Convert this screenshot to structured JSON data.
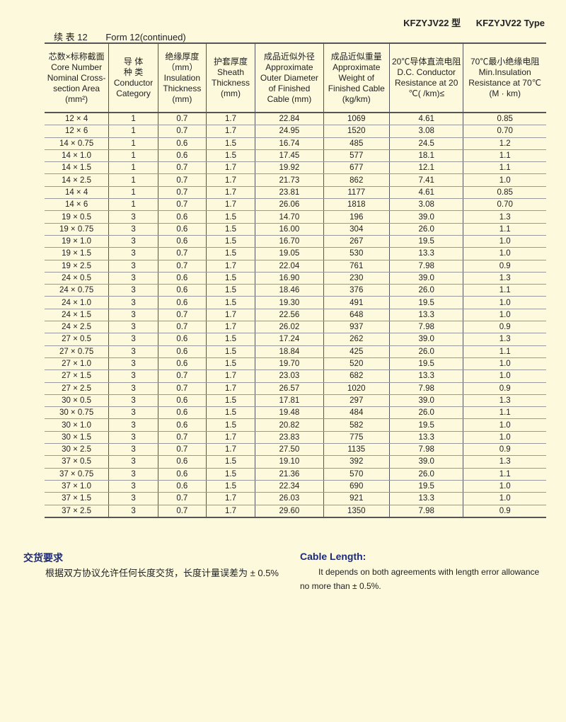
{
  "title": {
    "cn": "KFZYJV22 型",
    "en": "KFZYJV22 Type"
  },
  "caption": {
    "cn": "续 表 12",
    "en": "Form 12(continued)"
  },
  "table": {
    "headers": [
      "芯数×标称截面\nCore Number\nNominal Cross-\nsection Area\n(mm²)",
      "导 体\n种 类\nConductor\nCategory",
      "绝缘厚度\n（mm）\nInsulation\nThickness\n(mm)",
      "护套厚度\nSheath\nThickness\n(mm)",
      "成品近似外径\nApproximate\nOuter Diameter\nof Finished\nCable (mm)",
      "成品近似重量\nApproximate\nWeight of\nFinished Cable\n(kg/km)",
      "20℃导体直流电阻\nD.C. Conductor\nResistance at 20\n℃(  /km)≤",
      "70℃最小绝缘电阻\nMin.Insulation\nResistance at 70℃\n(M   · km)"
    ],
    "rows": [
      [
        "12 × 4",
        "1",
        "0.7",
        "1.7",
        "22.84",
        "1069",
        "4.61",
        "0.85"
      ],
      [
        "12 × 6",
        "1",
        "0.7",
        "1.7",
        "24.95",
        "1520",
        "3.08",
        "0.70"
      ],
      [
        "14 × 0.75",
        "1",
        "0.6",
        "1.5",
        "16.74",
        "485",
        "24.5",
        "1.2"
      ],
      [
        "14 × 1.0",
        "1",
        "0.6",
        "1.5",
        "17.45",
        "577",
        "18.1",
        "1.1"
      ],
      [
        "14 × 1.5",
        "1",
        "0.7",
        "1.7",
        "19.92",
        "677",
        "12.1",
        "1.1"
      ],
      [
        "14 × 2.5",
        "1",
        "0.7",
        "1.7",
        "21.73",
        "862",
        "7.41",
        "1.0"
      ],
      [
        "14 × 4",
        "1",
        "0.7",
        "1.7",
        "23.81",
        "1177",
        "4.61",
        "0.85"
      ],
      [
        "14 × 6",
        "1",
        "0.7",
        "1.7",
        "26.06",
        "1818",
        "3.08",
        "0.70"
      ],
      [
        "19 × 0.5",
        "3",
        "0.6",
        "1.5",
        "14.70",
        "196",
        "39.0",
        "1.3"
      ],
      [
        "19 × 0.75",
        "3",
        "0.6",
        "1.5",
        "16.00",
        "304",
        "26.0",
        "1.1"
      ],
      [
        "19 × 1.0",
        "3",
        "0.6",
        "1.5",
        "16.70",
        "267",
        "19.5",
        "1.0"
      ],
      [
        "19 × 1.5",
        "3",
        "0.7",
        "1.5",
        "19.05",
        "530",
        "13.3",
        "1.0"
      ],
      [
        "19 × 2.5",
        "3",
        "0.7",
        "1.7",
        "22.04",
        "761",
        "7.98",
        "0.9"
      ],
      [
        "24 × 0.5",
        "3",
        "0.6",
        "1.5",
        "16.90",
        "230",
        "39.0",
        "1.3"
      ],
      [
        "24 × 0.75",
        "3",
        "0.6",
        "1.5",
        "18.46",
        "376",
        "26.0",
        "1.1"
      ],
      [
        "24 × 1.0",
        "3",
        "0.6",
        "1.5",
        "19.30",
        "491",
        "19.5",
        "1.0"
      ],
      [
        "24 × 1.5",
        "3",
        "0.7",
        "1.7",
        "22.56",
        "648",
        "13.3",
        "1.0"
      ],
      [
        "24 × 2.5",
        "3",
        "0.7",
        "1.7",
        "26.02",
        "937",
        "7.98",
        "0.9"
      ],
      [
        "27 × 0.5",
        "3",
        "0.6",
        "1.5",
        "17.24",
        "262",
        "39.0",
        "1.3"
      ],
      [
        "27 × 0.75",
        "3",
        "0.6",
        "1.5",
        "18.84",
        "425",
        "26.0",
        "1.1"
      ],
      [
        "27 × 1.0",
        "3",
        "0.6",
        "1.5",
        "19.70",
        "520",
        "19.5",
        "1.0"
      ],
      [
        "27 × 1.5",
        "3",
        "0.7",
        "1.7",
        "23.03",
        "682",
        "13.3",
        "1.0"
      ],
      [
        "27 × 2.5",
        "3",
        "0.7",
        "1.7",
        "26.57",
        "1020",
        "7.98",
        "0.9"
      ],
      [
        "30 × 0.5",
        "3",
        "0.6",
        "1.5",
        "17.81",
        "297",
        "39.0",
        "1.3"
      ],
      [
        "30 × 0.75",
        "3",
        "0.6",
        "1.5",
        "19.48",
        "484",
        "26.0",
        "1.1"
      ],
      [
        "30 × 1.0",
        "3",
        "0.6",
        "1.5",
        "20.82",
        "582",
        "19.5",
        "1.0"
      ],
      [
        "30 × 1.5",
        "3",
        "0.7",
        "1.7",
        "23.83",
        "775",
        "13.3",
        "1.0"
      ],
      [
        "30 × 2.5",
        "3",
        "0.7",
        "1.7",
        "27.50",
        "1135",
        "7.98",
        "0.9"
      ],
      [
        "37 × 0.5",
        "3",
        "0.6",
        "1.5",
        "19.10",
        "392",
        "39.0",
        "1.3"
      ],
      [
        "37 × 0.75",
        "3",
        "0.6",
        "1.5",
        "21.36",
        "570",
        "26.0",
        "1.1"
      ],
      [
        "37 × 1.0",
        "3",
        "0.6",
        "1.5",
        "22.34",
        "690",
        "19.5",
        "1.0"
      ],
      [
        "37 × 1.5",
        "3",
        "0.7",
        "1.7",
        "26.03",
        "921",
        "13.3",
        "1.0"
      ],
      [
        "37 × 2.5",
        "3",
        "0.7",
        "1.7",
        "29.60",
        "1350",
        "7.98",
        "0.9"
      ]
    ]
  },
  "delivery": {
    "cn_heading": "交货要求",
    "cn_text": "根据双方协议允许任何长度交货，长度计量误差为 ± 0.5%",
    "en_heading": "Cable Length:",
    "en_text": "It depends on both agreements with length error allowance no more than  ± 0.5%."
  },
  "colors": {
    "background": "#fdf9dd",
    "heading": "#1d2a7a"
  }
}
